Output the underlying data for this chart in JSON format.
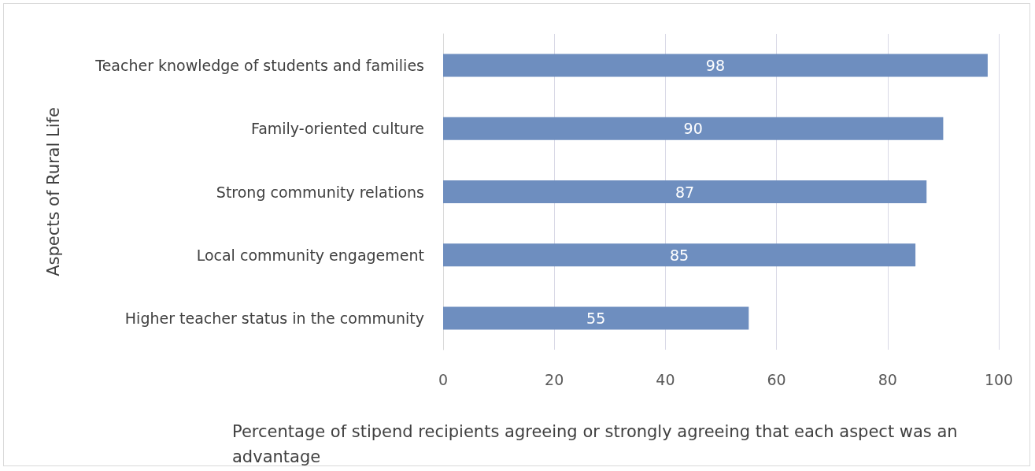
{
  "chart_data": {
    "type": "bar",
    "orientation": "horizontal",
    "xlabel": "Percentage of stipend recipients agreeing or strongly agreeing that each aspect was an advantage",
    "ylabel": "Aspects of Rural Life",
    "categories": [
      "Teacher knowledge of students and families",
      "Family-oriented culture",
      "Strong community relations",
      "Local community engagement",
      "Higher teacher status in the community"
    ],
    "values": [
      98,
      90,
      87,
      85,
      55
    ],
    "color": "#6e8ebf",
    "data_labels": true,
    "xlim": [
      0,
      100
    ],
    "xticks": [
      0,
      20,
      40,
      60,
      80,
      100
    ],
    "grid": "x"
  }
}
